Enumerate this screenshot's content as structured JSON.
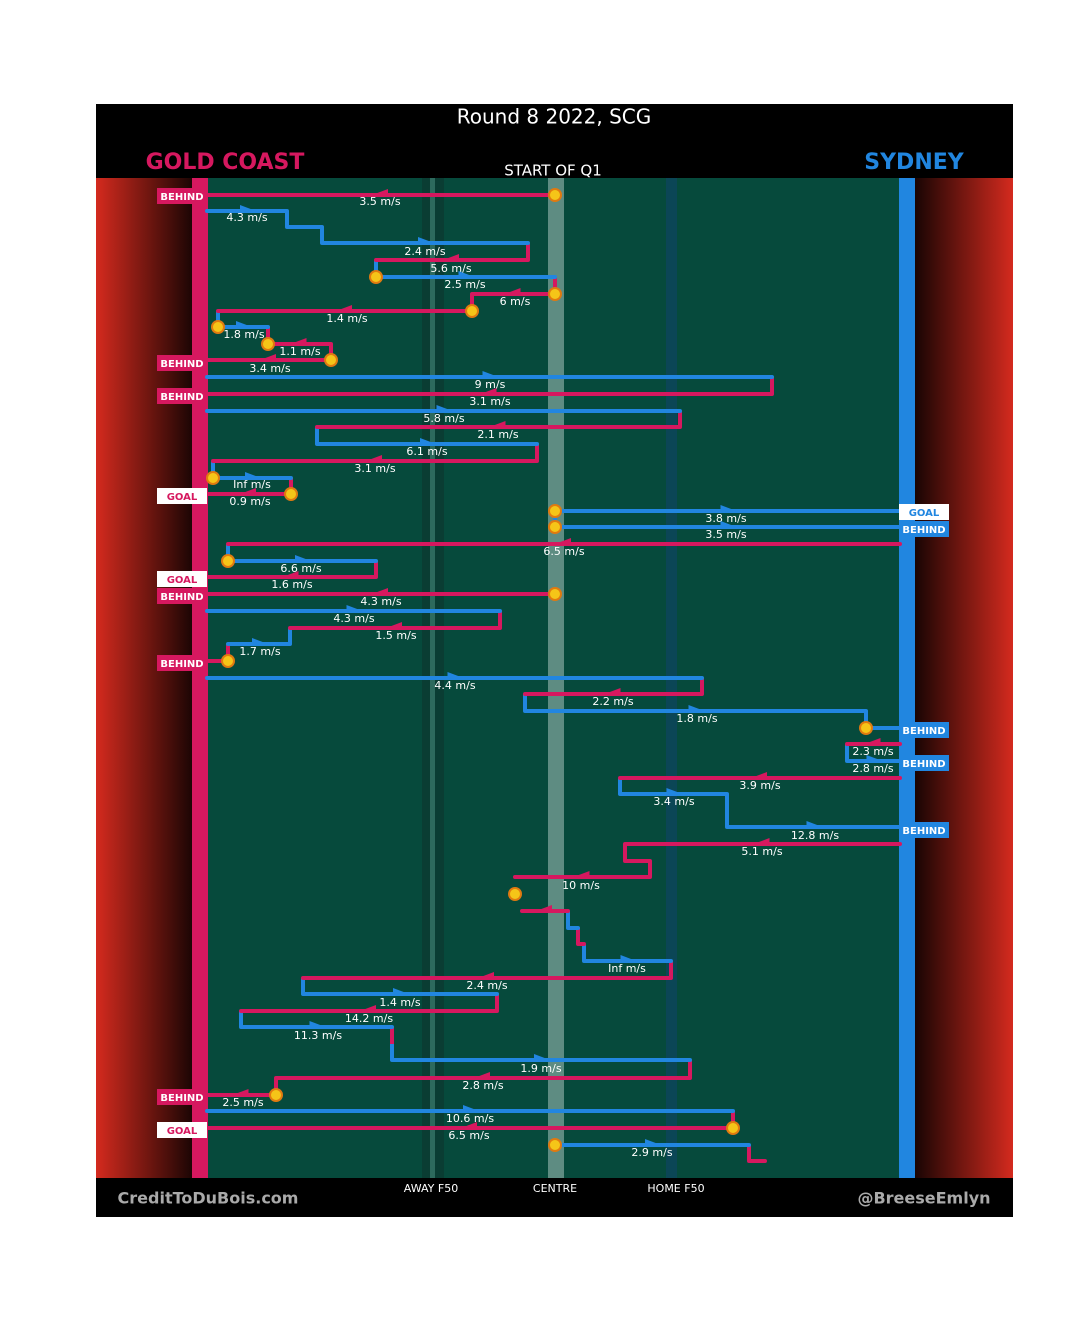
{
  "header": {
    "title": "Round 8 2022, SCG",
    "subtitle": "START OF Q1"
  },
  "teams": {
    "left": "GOLD COAST",
    "right": "SYDNEY"
  },
  "zones": [
    "AWAY F50",
    "CENTRE",
    "HOME F50"
  ],
  "footer": {
    "left": "CreditToDuBois.com",
    "right": "@BreeseEmlyn"
  },
  "outcomes": {
    "gold_coast": [
      "BEHIND",
      "BEHIND",
      "BEHIND",
      "GOAL",
      "GOAL",
      "BEHIND",
      "BEHIND",
      "BEHIND",
      "GOAL"
    ],
    "sydney": [
      "GOAL",
      "BEHIND",
      "BEHIND",
      "BEHIND",
      "BEHIND"
    ]
  },
  "speeds": [
    "3.5 m/s",
    "4.3 m/s",
    "2.4 m/s",
    "5.6 m/s",
    "2.5 m/s",
    "6 m/s",
    "1.4 m/s",
    "1.8 m/s",
    "1.1 m/s",
    "3.4 m/s",
    "9 m/s",
    "3.1 m/s",
    "5.8 m/s",
    "2.1 m/s",
    "6.1 m/s",
    "3.1 m/s",
    "Inf m/s",
    "0.9 m/s",
    "3.8 m/s",
    "3.5 m/s",
    "6.5 m/s",
    "6.6 m/s",
    "1.6 m/s",
    "4.3 m/s",
    "4.3 m/s",
    "1.5 m/s",
    "1.7 m/s",
    "4.4 m/s",
    "2.2 m/s",
    "1.8 m/s",
    "2.3 m/s",
    "2.8 m/s",
    "3.9 m/s",
    "3.4 m/s",
    "12.8 m/s",
    "5.1 m/s",
    "10 m/s",
    "Inf m/s",
    "2.4 m/s",
    "1.4 m/s",
    "14.2 m/s",
    "11.3 m/s",
    "1.9 m/s",
    "2.8 m/s",
    "2.5 m/s",
    "10.6 m/s",
    "6.5 m/s",
    "2.9 m/s"
  ]
}
